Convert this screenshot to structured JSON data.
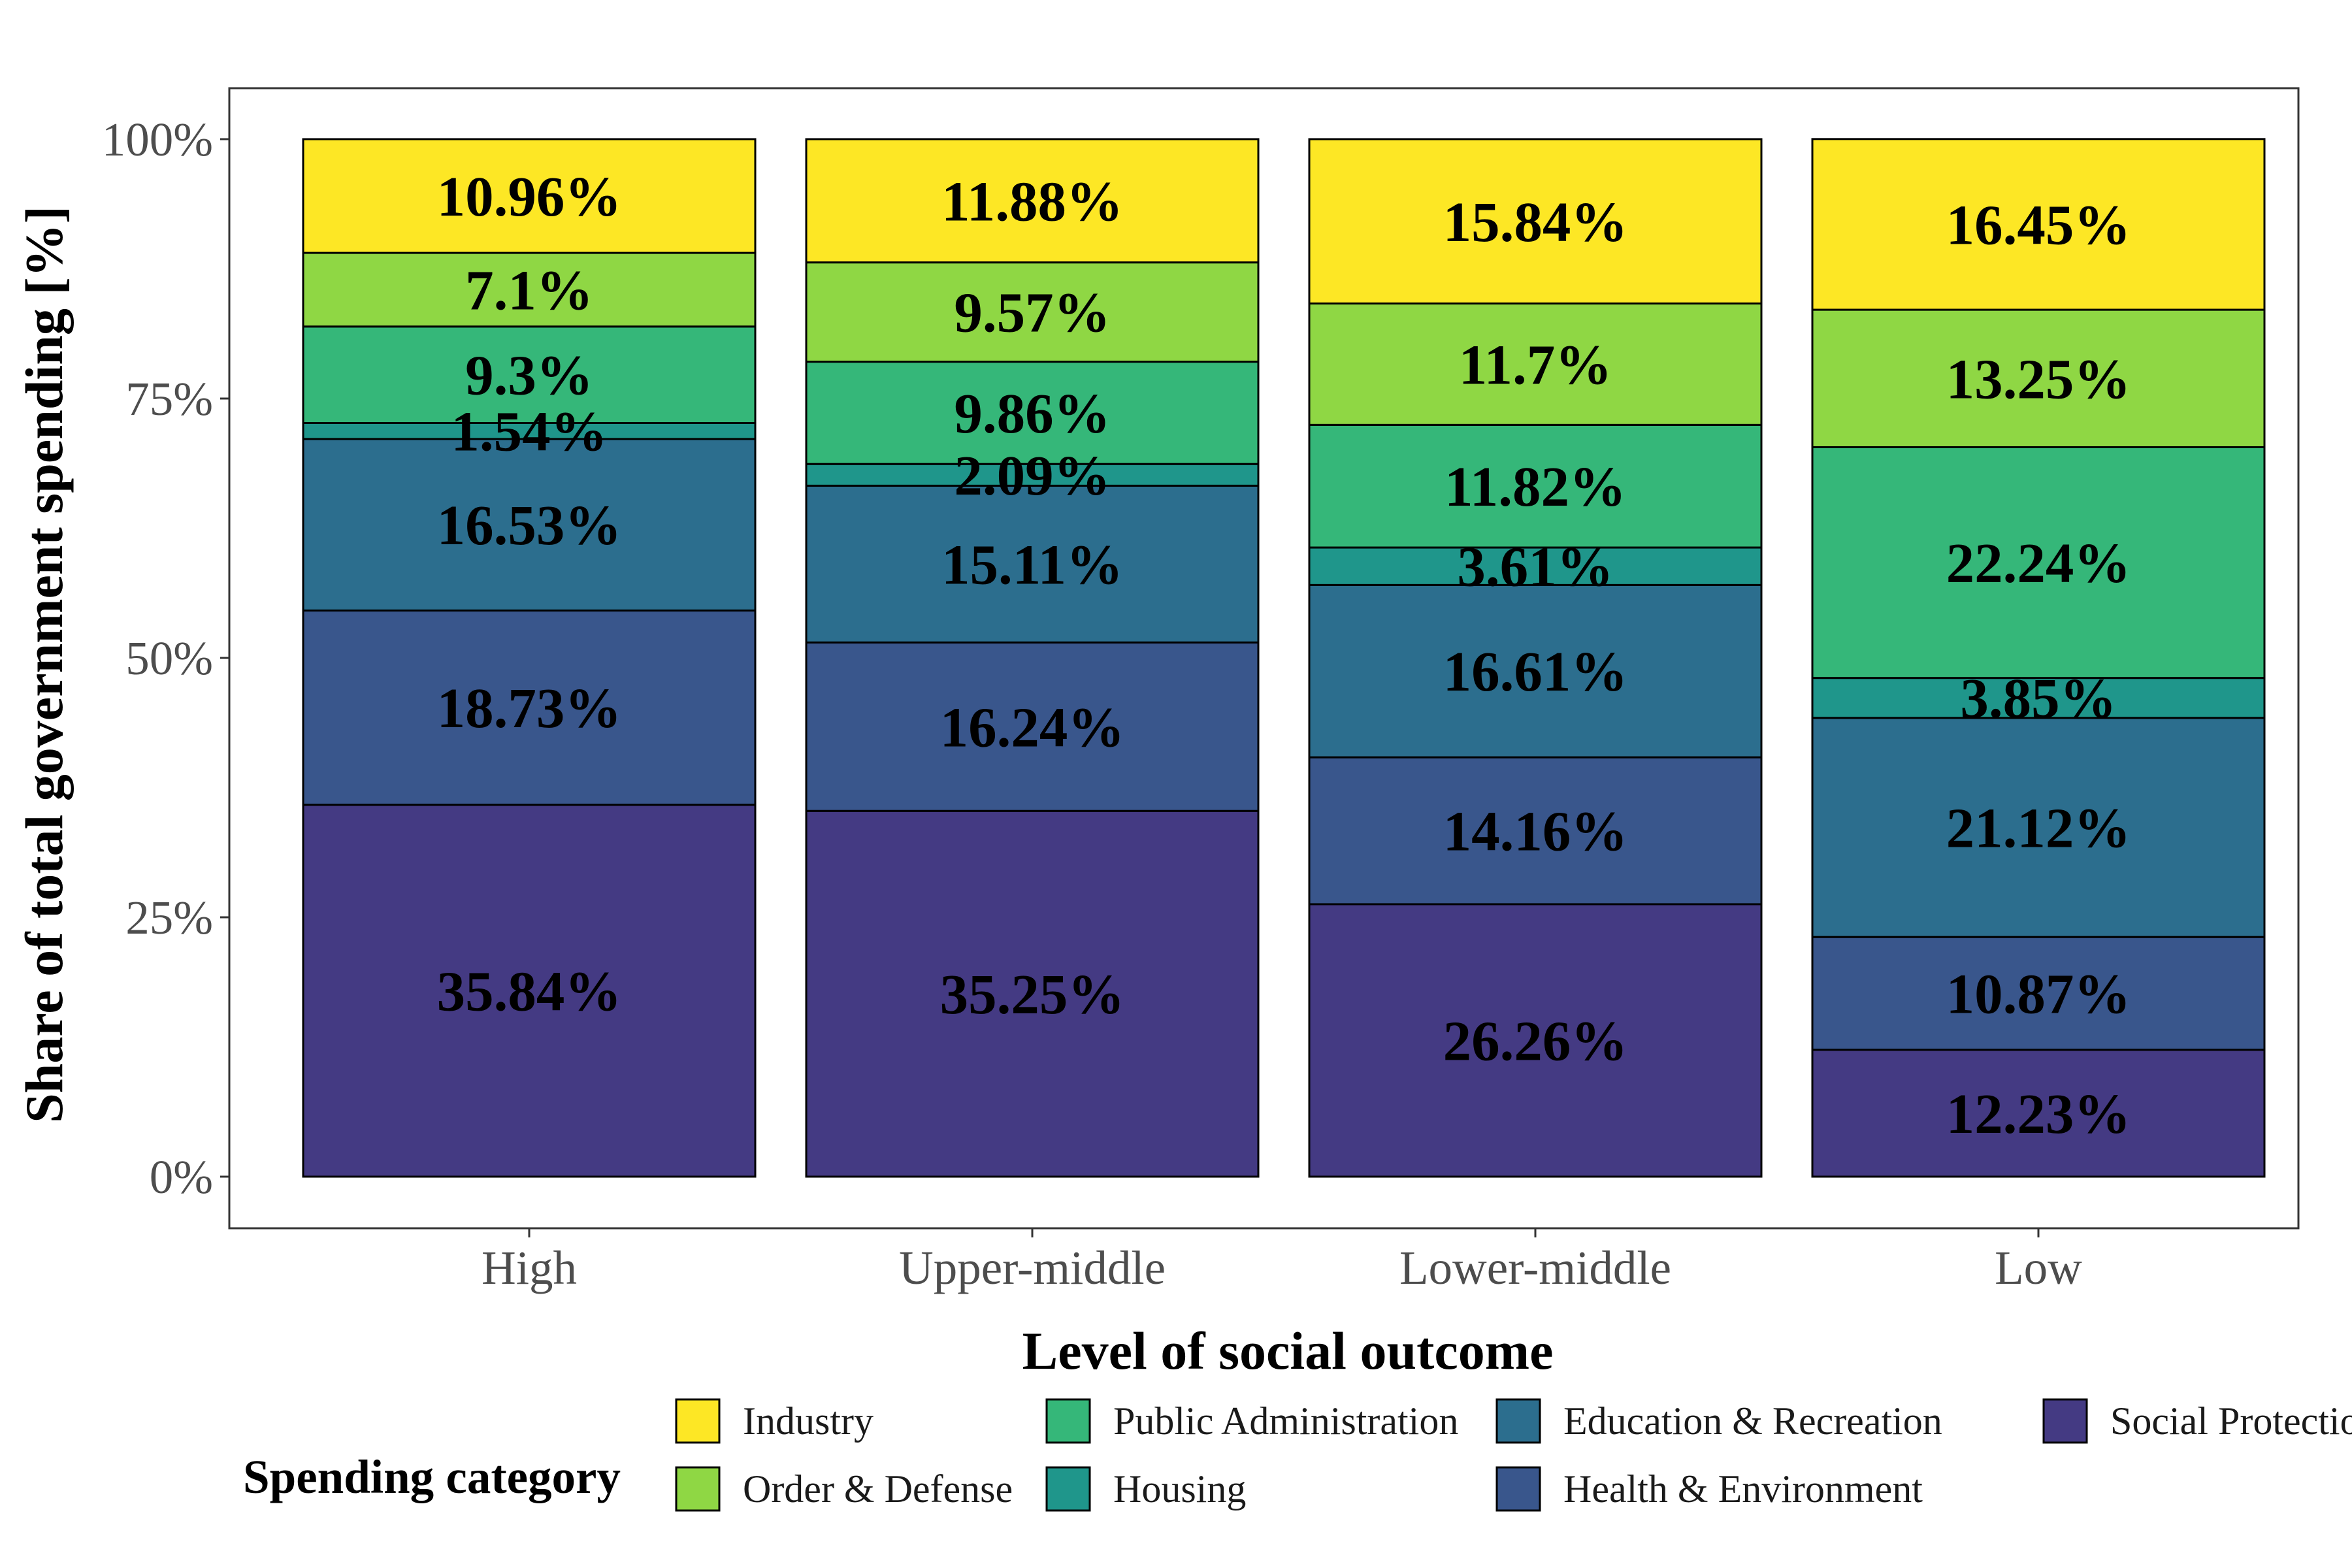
{
  "chart_data": {
    "type": "bar",
    "stacked": true,
    "xlabel": "Level of social outcome",
    "ylabel": "Share of total government spending [%]",
    "ylim": [
      0,
      100
    ],
    "y_ticks": [
      {
        "value": 0,
        "label": "0%"
      },
      {
        "value": 25,
        "label": "25%"
      },
      {
        "value": 50,
        "label": "50%"
      },
      {
        "value": 75,
        "label": "75%"
      },
      {
        "value": 100,
        "label": "100%"
      }
    ],
    "categories": [
      "High",
      "Upper-middle",
      "Lower-middle",
      "Low"
    ],
    "legend_title": "Spending category",
    "legend_position": "bottom",
    "grid": false,
    "series": [
      {
        "name": "Social Protection",
        "color": "#443A83",
        "values": [
          35.84,
          35.25,
          26.26,
          12.23
        ],
        "labels": [
          "35.84%",
          "35.25%",
          "26.26%",
          "12.23%"
        ]
      },
      {
        "name": "Health & Environment",
        "color": "#39568C",
        "values": [
          18.73,
          16.24,
          14.16,
          10.87
        ],
        "labels": [
          "18.73%",
          "16.24%",
          "14.16%",
          "10.87%"
        ]
      },
      {
        "name": "Education & Recreation",
        "color": "#2C6E8E",
        "values": [
          16.53,
          15.11,
          16.61,
          21.12
        ],
        "labels": [
          "16.53%",
          "15.11%",
          "16.61%",
          "21.12%"
        ]
      },
      {
        "name": "Housing",
        "color": "#1F968B",
        "values": [
          1.54,
          2.09,
          3.61,
          3.85
        ],
        "labels": [
          "1.54%",
          "2.09%",
          "3.61%",
          "3.85%"
        ]
      },
      {
        "name": "Public Administration",
        "color": "#35B779",
        "values": [
          9.3,
          9.86,
          11.82,
          22.24
        ],
        "labels": [
          "9.3%",
          "9.86%",
          "11.82%",
          "22.24%"
        ]
      },
      {
        "name": "Order & Defense",
        "color": "#8FD744",
        "values": [
          7.1,
          9.57,
          11.7,
          13.25
        ],
        "labels": [
          "7.1%",
          "9.57%",
          "11.7%",
          "13.25%"
        ]
      },
      {
        "name": "Industry",
        "color": "#FDE725",
        "values": [
          10.96,
          11.88,
          15.84,
          16.45
        ],
        "labels": [
          "10.96%",
          "11.88%",
          "15.84%",
          "16.45%"
        ]
      }
    ],
    "legend_order": [
      "Industry",
      "Order & Defense",
      "Public Administration",
      "Housing",
      "Education & Recreation",
      "Health & Environment",
      "Social Protection"
    ]
  }
}
